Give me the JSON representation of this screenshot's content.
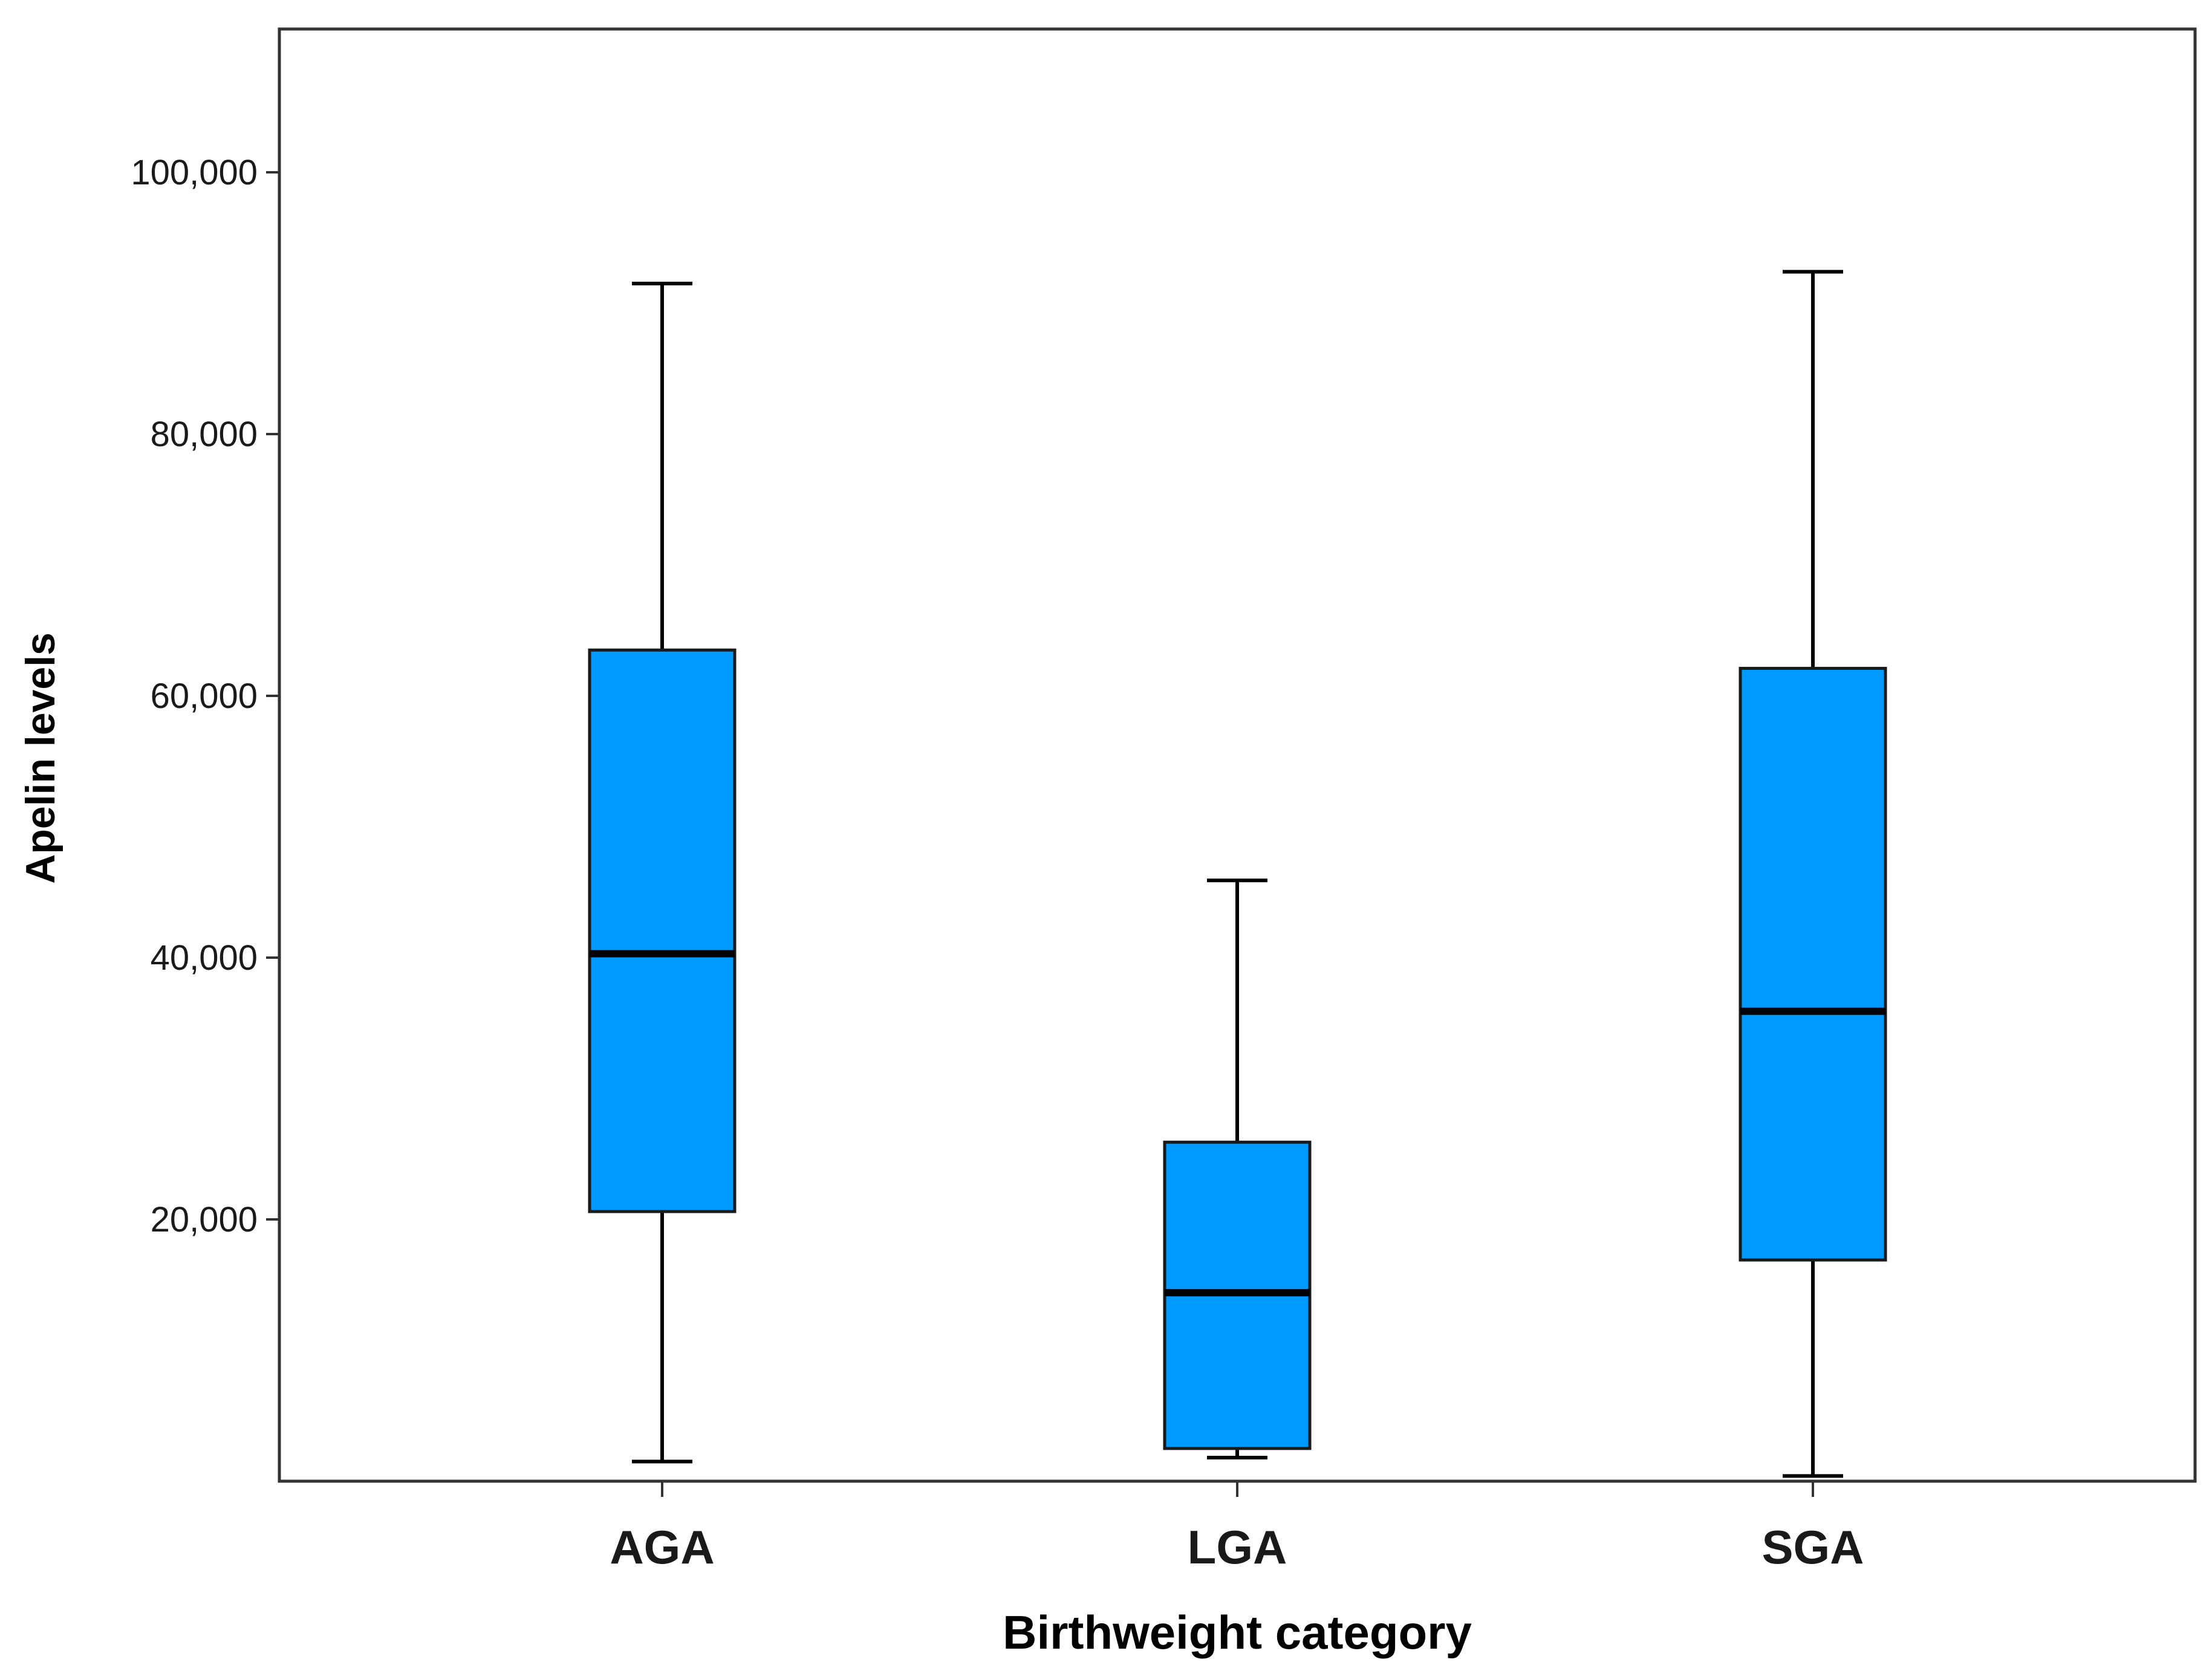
{
  "chart_data": {
    "type": "boxplot",
    "title": "",
    "xlabel": "Birthweight category",
    "ylabel": "Apelin levels",
    "ylim": [
      0,
      110000
    ],
    "yticks": [
      20000,
      40000,
      60000,
      80000,
      100000
    ],
    "ytick_labels": [
      "20,000",
      "40,000",
      "60,000",
      "80,000",
      "100,000"
    ],
    "categories": [
      "AGA",
      "LGA",
      "SGA"
    ],
    "series": [
      {
        "name": "AGA",
        "min": 1500,
        "q1": 20600,
        "median": 40300,
        "q3": 63500,
        "max": 91500
      },
      {
        "name": "LGA",
        "min": 1800,
        "q1": 2500,
        "median": 14400,
        "q3": 25900,
        "max": 45900
      },
      {
        "name": "SGA",
        "min": 400,
        "q1": 16900,
        "median": 35900,
        "q3": 62100,
        "max": 92400
      }
    ],
    "colors": {
      "box_fill": "#0099ff",
      "box_stroke": "#1a1a1a",
      "median": "#000000",
      "whisker": "#000000",
      "frame": "#333333",
      "text": "#1a1a1a"
    },
    "grid": false,
    "legend": "none"
  }
}
